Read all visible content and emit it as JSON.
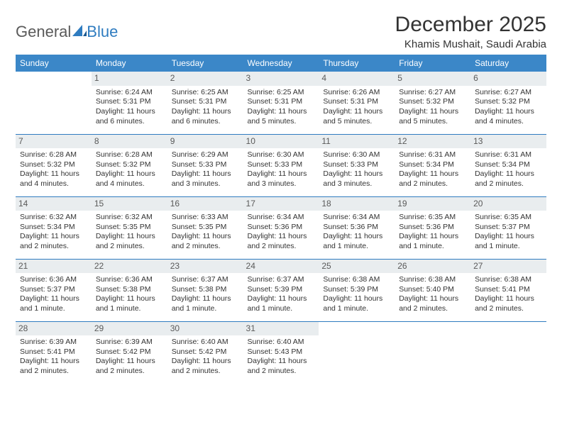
{
  "brand": {
    "part1": "General",
    "part2": "Blue"
  },
  "title": "December 2025",
  "location": "Khamis Mushait, Saudi Arabia",
  "colors": {
    "header_bg": "#3b87c8",
    "header_text": "#ffffff",
    "daynum_bg": "#e9edef",
    "rule": "#2f7cc0",
    "brand_blue": "#2f7cc0",
    "text": "#333333"
  },
  "weekdays": [
    "Sunday",
    "Monday",
    "Tuesday",
    "Wednesday",
    "Thursday",
    "Friday",
    "Saturday"
  ],
  "weeks": [
    [
      {
        "n": "",
        "sr": "",
        "ss": "",
        "dl": ""
      },
      {
        "n": "1",
        "sr": "Sunrise: 6:24 AM",
        "ss": "Sunset: 5:31 PM",
        "dl": "Daylight: 11 hours and 6 minutes."
      },
      {
        "n": "2",
        "sr": "Sunrise: 6:25 AM",
        "ss": "Sunset: 5:31 PM",
        "dl": "Daylight: 11 hours and 6 minutes."
      },
      {
        "n": "3",
        "sr": "Sunrise: 6:25 AM",
        "ss": "Sunset: 5:31 PM",
        "dl": "Daylight: 11 hours and 5 minutes."
      },
      {
        "n": "4",
        "sr": "Sunrise: 6:26 AM",
        "ss": "Sunset: 5:31 PM",
        "dl": "Daylight: 11 hours and 5 minutes."
      },
      {
        "n": "5",
        "sr": "Sunrise: 6:27 AM",
        "ss": "Sunset: 5:32 PM",
        "dl": "Daylight: 11 hours and 5 minutes."
      },
      {
        "n": "6",
        "sr": "Sunrise: 6:27 AM",
        "ss": "Sunset: 5:32 PM",
        "dl": "Daylight: 11 hours and 4 minutes."
      }
    ],
    [
      {
        "n": "7",
        "sr": "Sunrise: 6:28 AM",
        "ss": "Sunset: 5:32 PM",
        "dl": "Daylight: 11 hours and 4 minutes."
      },
      {
        "n": "8",
        "sr": "Sunrise: 6:28 AM",
        "ss": "Sunset: 5:32 PM",
        "dl": "Daylight: 11 hours and 4 minutes."
      },
      {
        "n": "9",
        "sr": "Sunrise: 6:29 AM",
        "ss": "Sunset: 5:33 PM",
        "dl": "Daylight: 11 hours and 3 minutes."
      },
      {
        "n": "10",
        "sr": "Sunrise: 6:30 AM",
        "ss": "Sunset: 5:33 PM",
        "dl": "Daylight: 11 hours and 3 minutes."
      },
      {
        "n": "11",
        "sr": "Sunrise: 6:30 AM",
        "ss": "Sunset: 5:33 PM",
        "dl": "Daylight: 11 hours and 3 minutes."
      },
      {
        "n": "12",
        "sr": "Sunrise: 6:31 AM",
        "ss": "Sunset: 5:34 PM",
        "dl": "Daylight: 11 hours and 2 minutes."
      },
      {
        "n": "13",
        "sr": "Sunrise: 6:31 AM",
        "ss": "Sunset: 5:34 PM",
        "dl": "Daylight: 11 hours and 2 minutes."
      }
    ],
    [
      {
        "n": "14",
        "sr": "Sunrise: 6:32 AM",
        "ss": "Sunset: 5:34 PM",
        "dl": "Daylight: 11 hours and 2 minutes."
      },
      {
        "n": "15",
        "sr": "Sunrise: 6:32 AM",
        "ss": "Sunset: 5:35 PM",
        "dl": "Daylight: 11 hours and 2 minutes."
      },
      {
        "n": "16",
        "sr": "Sunrise: 6:33 AM",
        "ss": "Sunset: 5:35 PM",
        "dl": "Daylight: 11 hours and 2 minutes."
      },
      {
        "n": "17",
        "sr": "Sunrise: 6:34 AM",
        "ss": "Sunset: 5:36 PM",
        "dl": "Daylight: 11 hours and 2 minutes."
      },
      {
        "n": "18",
        "sr": "Sunrise: 6:34 AM",
        "ss": "Sunset: 5:36 PM",
        "dl": "Daylight: 11 hours and 1 minute."
      },
      {
        "n": "19",
        "sr": "Sunrise: 6:35 AM",
        "ss": "Sunset: 5:36 PM",
        "dl": "Daylight: 11 hours and 1 minute."
      },
      {
        "n": "20",
        "sr": "Sunrise: 6:35 AM",
        "ss": "Sunset: 5:37 PM",
        "dl": "Daylight: 11 hours and 1 minute."
      }
    ],
    [
      {
        "n": "21",
        "sr": "Sunrise: 6:36 AM",
        "ss": "Sunset: 5:37 PM",
        "dl": "Daylight: 11 hours and 1 minute."
      },
      {
        "n": "22",
        "sr": "Sunrise: 6:36 AM",
        "ss": "Sunset: 5:38 PM",
        "dl": "Daylight: 11 hours and 1 minute."
      },
      {
        "n": "23",
        "sr": "Sunrise: 6:37 AM",
        "ss": "Sunset: 5:38 PM",
        "dl": "Daylight: 11 hours and 1 minute."
      },
      {
        "n": "24",
        "sr": "Sunrise: 6:37 AM",
        "ss": "Sunset: 5:39 PM",
        "dl": "Daylight: 11 hours and 1 minute."
      },
      {
        "n": "25",
        "sr": "Sunrise: 6:38 AM",
        "ss": "Sunset: 5:39 PM",
        "dl": "Daylight: 11 hours and 1 minute."
      },
      {
        "n": "26",
        "sr": "Sunrise: 6:38 AM",
        "ss": "Sunset: 5:40 PM",
        "dl": "Daylight: 11 hours and 2 minutes."
      },
      {
        "n": "27",
        "sr": "Sunrise: 6:38 AM",
        "ss": "Sunset: 5:41 PM",
        "dl": "Daylight: 11 hours and 2 minutes."
      }
    ],
    [
      {
        "n": "28",
        "sr": "Sunrise: 6:39 AM",
        "ss": "Sunset: 5:41 PM",
        "dl": "Daylight: 11 hours and 2 minutes."
      },
      {
        "n": "29",
        "sr": "Sunrise: 6:39 AM",
        "ss": "Sunset: 5:42 PM",
        "dl": "Daylight: 11 hours and 2 minutes."
      },
      {
        "n": "30",
        "sr": "Sunrise: 6:40 AM",
        "ss": "Sunset: 5:42 PM",
        "dl": "Daylight: 11 hours and 2 minutes."
      },
      {
        "n": "31",
        "sr": "Sunrise: 6:40 AM",
        "ss": "Sunset: 5:43 PM",
        "dl": "Daylight: 11 hours and 2 minutes."
      },
      {
        "n": "",
        "sr": "",
        "ss": "",
        "dl": ""
      },
      {
        "n": "",
        "sr": "",
        "ss": "",
        "dl": ""
      },
      {
        "n": "",
        "sr": "",
        "ss": "",
        "dl": ""
      }
    ]
  ]
}
